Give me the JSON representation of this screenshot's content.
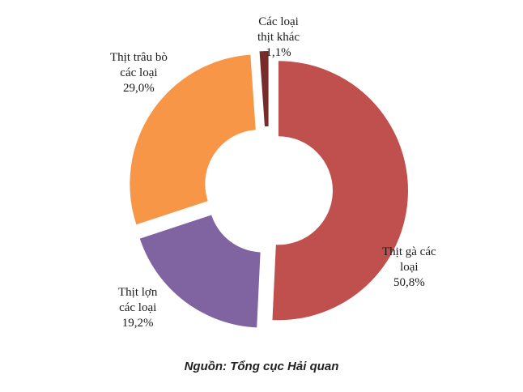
{
  "chart_data": {
    "type": "pie",
    "donut": true,
    "exploded": true,
    "slices": [
      {
        "label_lines": [
          "Thịt gà các",
          "loại",
          "50,8%"
        ],
        "value": 50.8,
        "color": "#c0504d"
      },
      {
        "label_lines": [
          "Thịt lợn",
          "các loại",
          "19,2%"
        ],
        "value": 19.2,
        "color": "#8064a2"
      },
      {
        "label_lines": [
          "Thịt trâu bò",
          "các loại",
          "29,0%"
        ],
        "value": 29.0,
        "color": "#f79646"
      },
      {
        "label_lines": [
          "Các loại",
          "thịt khác",
          "1,1%"
        ],
        "value": 1.1,
        "color": "#772c2a"
      }
    ]
  },
  "source_note": "Nguồn: Tổng cục Hải quan"
}
